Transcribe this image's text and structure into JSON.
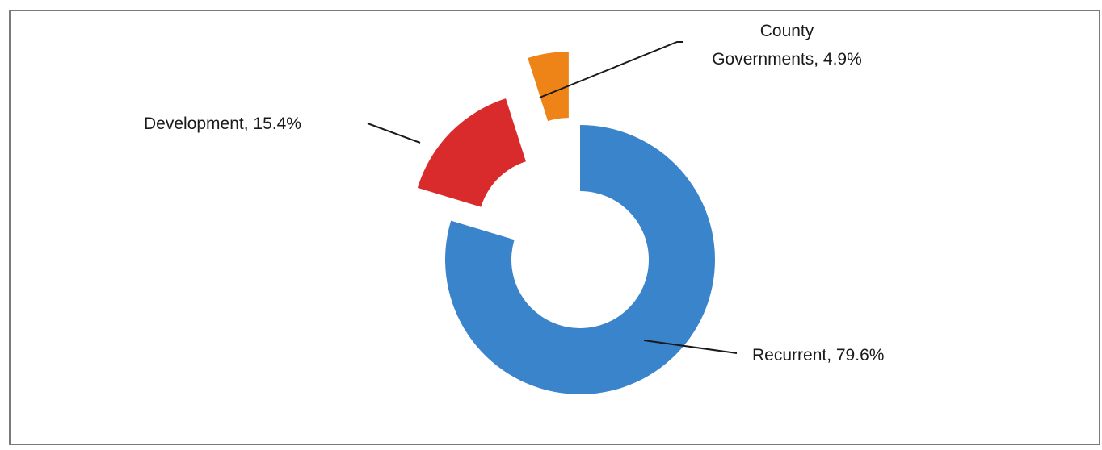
{
  "chart_data": {
    "type": "pie",
    "style": "donut",
    "title": "",
    "slices": [
      {
        "label": "Recurrent",
        "value": 79.6,
        "display": "Recurrent, 79.6%",
        "color": "#3a84cc"
      },
      {
        "label": "Development",
        "value": 15.4,
        "display": "Development, 15.4%",
        "color": "#d92b2b"
      },
      {
        "label": "County Governments",
        "value": 4.9,
        "display_lines": [
          "County",
          "Governments, 4.9%"
        ],
        "color": "#ee8418"
      }
    ],
    "legend": "none",
    "data_labels": "outside with leader lines"
  }
}
